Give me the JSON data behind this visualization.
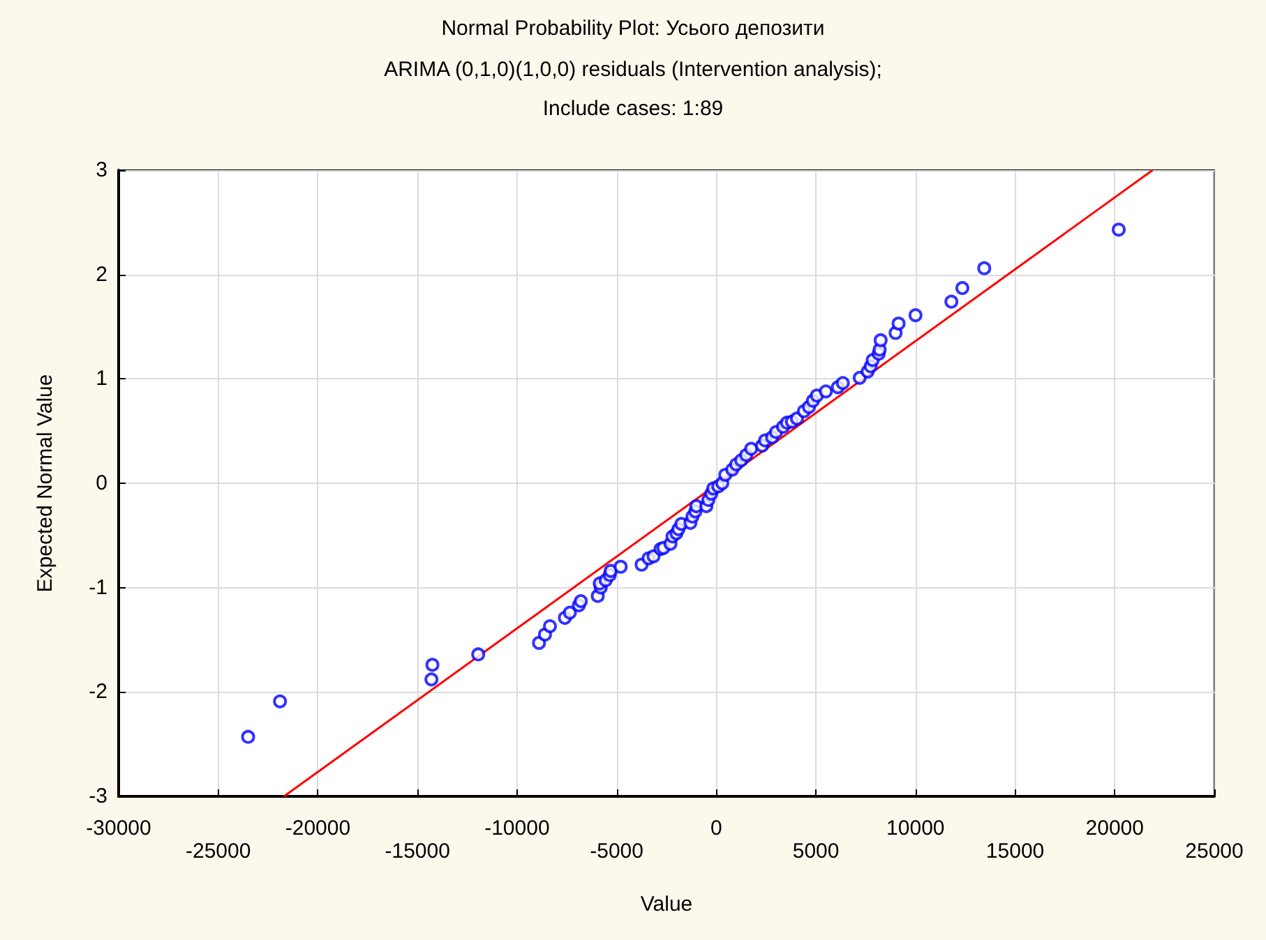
{
  "chart_data": {
    "type": "scatter",
    "title": "Normal Probability Plot: Усього депозити",
    "subtitle": "ARIMA (0,1,0)(1,0,0) residuals (Intervention analysis);\nInclude cases: 1:89",
    "xlabel": "Value",
    "ylabel": "Expected Normal Value",
    "xlim": [
      -30000,
      25000
    ],
    "xticks": [
      -30000,
      {
        "value": -25000,
        "label": null
      },
      -20000,
      {
        "value": -15000,
        "label": null
      },
      -10000,
      {
        "value": -5000,
        "label": null
      },
      0,
      {
        "value": 5000,
        "label": null
      },
      10000,
      {
        "value": 15000,
        "label": null
      },
      20000,
      {
        "value": 25000,
        "label": null
      }
    ],
    "x2lim": [
      -30000,
      25000
    ],
    "x2ticks": [
      -25000,
      -15000,
      -5000,
      5000,
      15000,
      25000
    ],
    "ylim": [
      -3,
      3
    ],
    "yticks": [
      -3,
      -2,
      -1,
      0,
      1,
      2,
      3
    ],
    "grid": true,
    "series": [
      {
        "color": "#0000ff",
        "marker": "circle",
        "x": [
          -23500,
          -21900,
          -14300,
          -14250,
          -11950,
          -8900,
          -8600,
          -8350,
          -7600,
          -7350,
          -6900,
          -6800,
          -5950,
          -5800,
          -5850,
          -5550,
          -5350,
          -5300,
          -4800,
          -3750,
          -3400,
          -3150,
          -2800,
          -2650,
          -2300,
          -2200,
          -2000,
          -1900,
          -1750,
          -1300,
          -1200,
          -1050,
          -1000,
          -500,
          -400,
          -250,
          -150,
          100,
          300,
          450,
          800,
          1000,
          1250,
          1500,
          1750,
          2300,
          2450,
          2800,
          3000,
          3350,
          3550,
          3800,
          4050,
          4400,
          4650,
          4850,
          5050,
          5500,
          6100,
          6350,
          7200,
          7600,
          7750,
          7850,
          8150,
          8200,
          8250,
          9000,
          9150,
          10000,
          11800,
          12350,
          13450,
          20200
        ],
        "values": [
          -2.43,
          -2.09,
          -1.88,
          -1.74,
          -1.64,
          -1.53,
          -1.45,
          -1.37,
          -1.29,
          -1.24,
          -1.17,
          -1.13,
          -1.08,
          -1.0,
          -0.96,
          -0.93,
          -0.88,
          -0.84,
          -0.8,
          -0.78,
          -0.72,
          -0.7,
          -0.63,
          -0.62,
          -0.58,
          -0.51,
          -0.48,
          -0.44,
          -0.39,
          -0.38,
          -0.32,
          -0.27,
          -0.22,
          -0.22,
          -0.16,
          -0.1,
          -0.05,
          -0.03,
          0.0,
          0.08,
          0.13,
          0.18,
          0.22,
          0.27,
          0.33,
          0.36,
          0.41,
          0.44,
          0.49,
          0.54,
          0.58,
          0.59,
          0.62,
          0.69,
          0.73,
          0.79,
          0.84,
          0.88,
          0.92,
          0.96,
          1.01,
          1.07,
          1.12,
          1.18,
          1.24,
          1.28,
          1.37,
          1.44,
          1.53,
          1.61,
          1.74,
          1.87,
          2.06,
          2.43
        ]
      },
      {
        "type": "line",
        "color": "#ff0000",
        "marker": "none",
        "line_style": "solid",
        "x": [
          -21700,
          21900
        ],
        "values": [
          -3,
          3
        ]
      }
    ]
  }
}
